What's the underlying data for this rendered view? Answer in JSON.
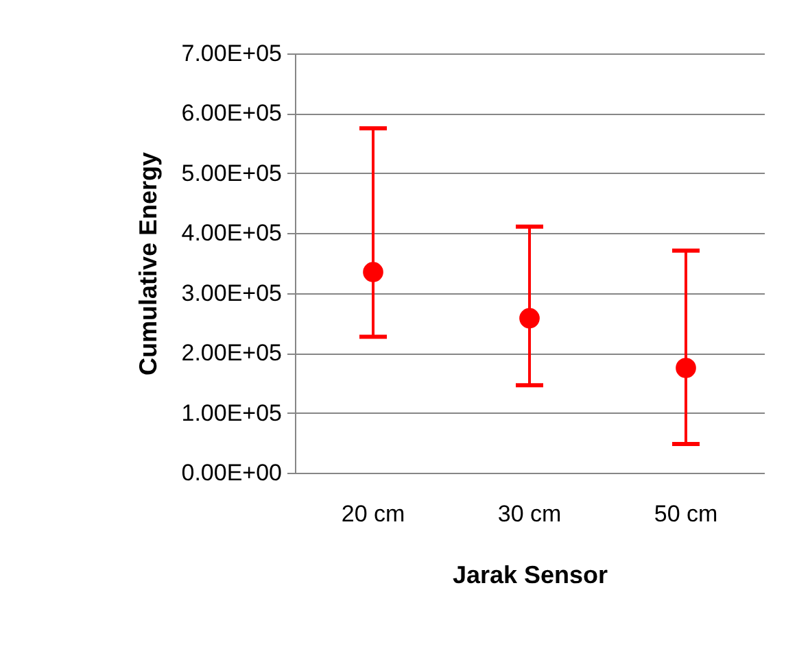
{
  "chart_data": {
    "type": "scatter",
    "xlabel": "Jarak Sensor",
    "ylabel": "Cumulative Energy",
    "categories": [
      "20 cm",
      "30 cm",
      "50 cm"
    ],
    "values": [
      335000,
      258000,
      175000
    ],
    "errors": [
      [
        227000,
        575000
      ],
      [
        146000,
        411000
      ],
      [
        48000,
        371000
      ]
    ],
    "color": "#ff0000",
    "marker": "circle",
    "grid": "y",
    "ylim": [
      0,
      700000
    ],
    "yticks": [
      {
        "value": 0,
        "label": "0.00E+00"
      },
      {
        "value": 100000,
        "label": "1.00E+05"
      },
      {
        "value": 200000,
        "label": "2.00E+05"
      },
      {
        "value": 300000,
        "label": "3.00E+05"
      },
      {
        "value": 400000,
        "label": "4.00E+05"
      },
      {
        "value": 500000,
        "label": "5.00E+05"
      },
      {
        "value": 600000,
        "label": "6.00E+05"
      },
      {
        "value": 700000,
        "label": "7.00E+05"
      }
    ]
  }
}
